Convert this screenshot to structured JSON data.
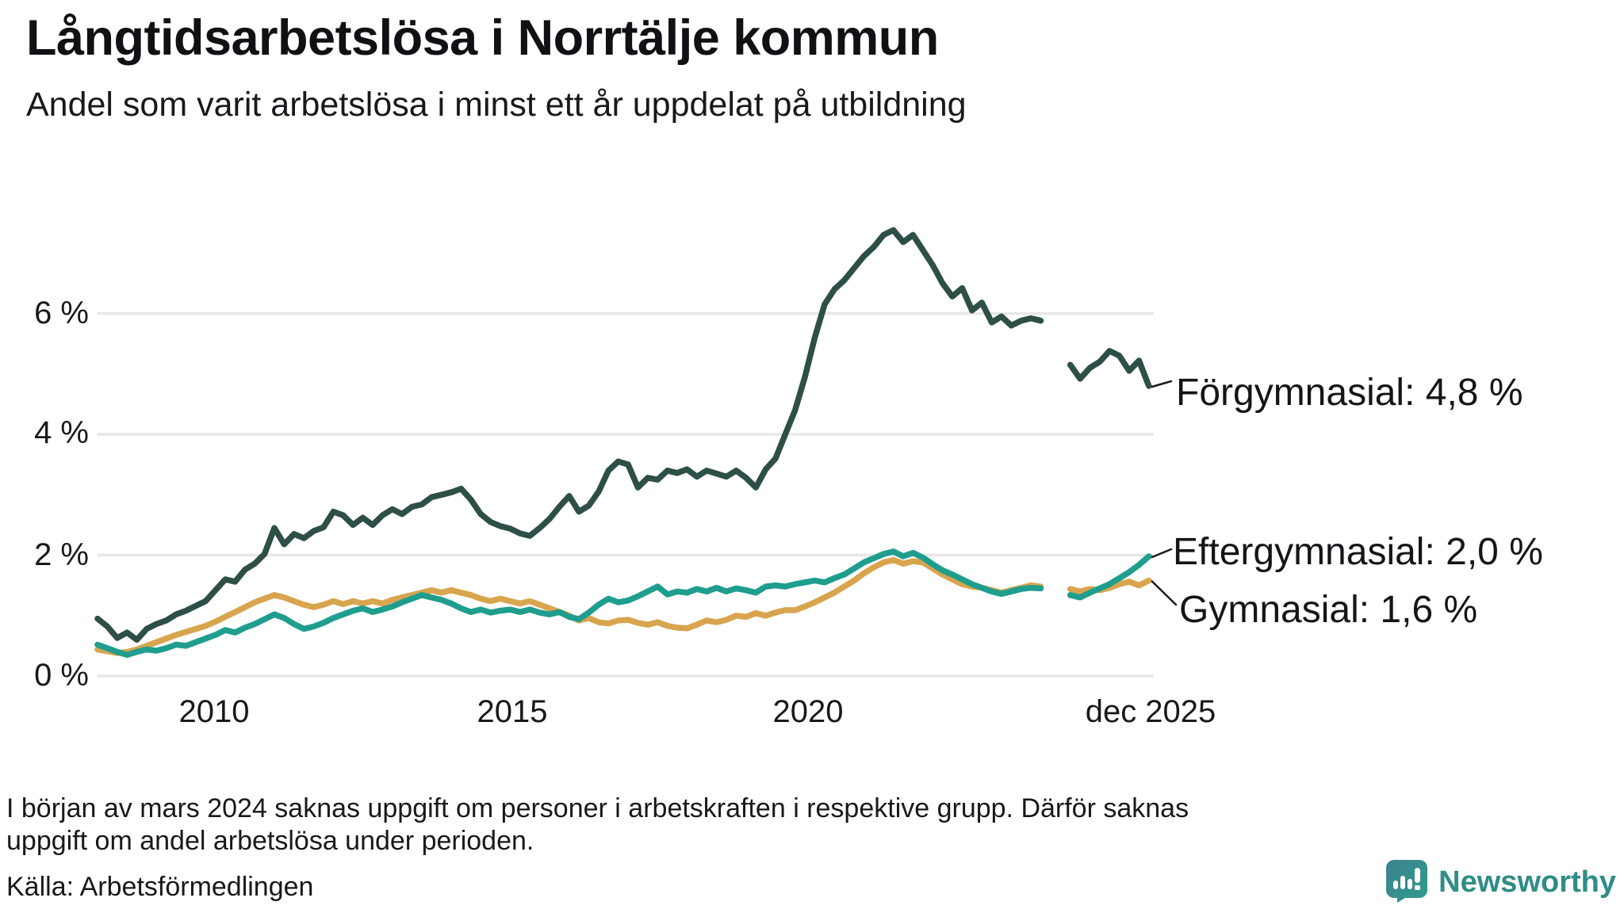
{
  "chart_data": {
    "type": "line",
    "title": "Långtidsarbetslösa i Norrtälje kommun",
    "subtitle": "Andel som varit arbetslösa i minst ett år uppdelat på utbildning",
    "unit": "%",
    "grid_color": "#e7e7ea",
    "grid_on": true,
    "legend_position": "right-end-labels",
    "x_axis": {
      "start": "2008-01",
      "step_months": 2,
      "tick_labels": [
        "2010",
        "2015",
        "2020",
        "dec 2025"
      ],
      "tick_positions_years": [
        2010,
        2015,
        2020,
        2025.92
      ]
    },
    "y_axis": {
      "tick_labels": [
        "0 %",
        "2 %",
        "4 %",
        "6 %"
      ],
      "tick_values": [
        0,
        2,
        4,
        6
      ],
      "range_plotted": [
        0,
        7.5
      ]
    },
    "data_gap": "mars 2024 till juni 2024 (inga värden)",
    "series": [
      {
        "name": "Förgymnasial",
        "end_label": "Förgymnasial: 4,8 %",
        "end_value_display": "4,8 %",
        "end_value": 4.8,
        "color": "#2e4f47",
        "values": [
          0.95,
          0.82,
          0.63,
          0.72,
          0.6,
          0.78,
          0.86,
          0.92,
          1.02,
          1.08,
          1.16,
          1.24,
          1.42,
          1.6,
          1.56,
          1.76,
          1.86,
          2.02,
          2.45,
          2.18,
          2.35,
          2.28,
          2.4,
          2.46,
          2.72,
          2.66,
          2.5,
          2.62,
          2.5,
          2.66,
          2.76,
          2.68,
          2.8,
          2.84,
          2.96,
          3.0,
          3.04,
          3.1,
          2.92,
          2.68,
          2.55,
          2.48,
          2.44,
          2.36,
          2.32,
          2.45,
          2.6,
          2.8,
          2.98,
          2.72,
          2.82,
          3.05,
          3.4,
          3.55,
          3.5,
          3.12,
          3.28,
          3.25,
          3.4,
          3.36,
          3.42,
          3.3,
          3.4,
          3.35,
          3.3,
          3.4,
          3.28,
          3.12,
          3.42,
          3.6,
          4.0,
          4.4,
          4.95,
          5.6,
          6.15,
          6.4,
          6.55,
          6.75,
          6.95,
          7.1,
          7.3,
          7.38,
          7.18,
          7.3,
          7.05,
          6.8,
          6.5,
          6.28,
          6.42,
          6.05,
          6.18,
          5.85,
          5.95,
          5.8,
          5.88,
          5.92,
          5.88,
          null,
          null,
          5.15,
          4.92,
          5.1,
          5.2,
          5.38,
          5.3,
          5.05,
          5.22,
          4.8
        ]
      },
      {
        "name": "Eftergymnasial",
        "end_label": "Eftergymnasial: 2,0 %",
        "end_value_display": "2,0 %",
        "end_value": 2.0,
        "color": "#1f9e8e",
        "values": [
          0.52,
          0.46,
          0.4,
          0.35,
          0.4,
          0.44,
          0.42,
          0.46,
          0.52,
          0.5,
          0.56,
          0.62,
          0.68,
          0.76,
          0.72,
          0.8,
          0.86,
          0.94,
          1.02,
          0.96,
          0.86,
          0.78,
          0.82,
          0.88,
          0.96,
          1.02,
          1.08,
          1.12,
          1.06,
          1.1,
          1.15,
          1.22,
          1.28,
          1.34,
          1.3,
          1.26,
          1.2,
          1.12,
          1.06,
          1.1,
          1.05,
          1.08,
          1.1,
          1.06,
          1.1,
          1.05,
          1.02,
          1.06,
          0.98,
          0.94,
          1.05,
          1.18,
          1.28,
          1.22,
          1.25,
          1.32,
          1.4,
          1.48,
          1.35,
          1.4,
          1.38,
          1.44,
          1.4,
          1.46,
          1.4,
          1.45,
          1.42,
          1.38,
          1.48,
          1.5,
          1.48,
          1.52,
          1.55,
          1.58,
          1.55,
          1.62,
          1.68,
          1.78,
          1.88,
          1.95,
          2.02,
          2.06,
          1.98,
          2.04,
          1.96,
          1.85,
          1.75,
          1.68,
          1.6,
          1.52,
          1.46,
          1.4,
          1.36,
          1.4,
          1.44,
          1.46,
          1.45,
          null,
          null,
          1.34,
          1.3,
          1.38,
          1.45,
          1.52,
          1.62,
          1.72,
          1.84,
          1.98
        ]
      },
      {
        "name": "Gymnasial",
        "end_label": "Gymnasial: 1,6 %",
        "end_value_display": "1,6 %",
        "end_value": 1.6,
        "color": "#d8a54e",
        "values": [
          0.44,
          0.41,
          0.38,
          0.4,
          0.44,
          0.5,
          0.56,
          0.62,
          0.68,
          0.73,
          0.78,
          0.83,
          0.9,
          0.98,
          1.06,
          1.14,
          1.22,
          1.28,
          1.34,
          1.3,
          1.24,
          1.18,
          1.14,
          1.18,
          1.24,
          1.19,
          1.24,
          1.2,
          1.24,
          1.2,
          1.26,
          1.3,
          1.34,
          1.38,
          1.42,
          1.38,
          1.42,
          1.38,
          1.34,
          1.28,
          1.24,
          1.28,
          1.24,
          1.2,
          1.24,
          1.18,
          1.12,
          1.06,
          1.0,
          0.92,
          0.96,
          0.89,
          0.87,
          0.92,
          0.93,
          0.88,
          0.85,
          0.89,
          0.83,
          0.8,
          0.79,
          0.85,
          0.92,
          0.89,
          0.93,
          1.0,
          0.98,
          1.04,
          1.0,
          1.05,
          1.09,
          1.09,
          1.15,
          1.22,
          1.3,
          1.38,
          1.48,
          1.58,
          1.7,
          1.8,
          1.88,
          1.92,
          1.86,
          1.9,
          1.88,
          1.78,
          1.68,
          1.6,
          1.52,
          1.48,
          1.46,
          1.42,
          1.38,
          1.42,
          1.46,
          1.5,
          1.48,
          null,
          null,
          1.44,
          1.4,
          1.44,
          1.42,
          1.46,
          1.52,
          1.56,
          1.5,
          1.58
        ]
      }
    ]
  },
  "footnote": {
    "line1": "I början av mars 2024 saknas uppgift om personer i arbetskraften i respektive grupp. Därför saknas uppgift om",
    "line2": "andel arbetslösa under perioden."
  },
  "source": "Källa: Arbetsförmedlingen",
  "logo": {
    "text": "Newsworthy",
    "brand_color": "#2f8d86"
  }
}
